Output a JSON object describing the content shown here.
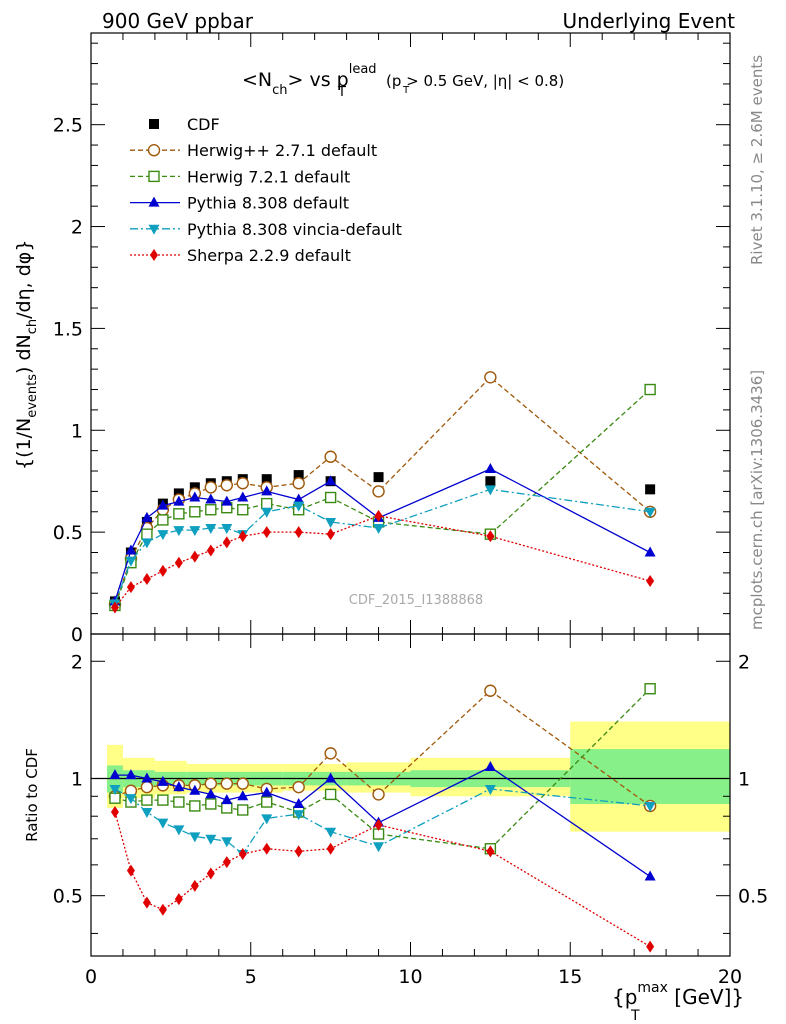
{
  "header": {
    "left": "900 GeV ppbar",
    "right": "Underlying Event",
    "right_side_top": "Rivet 3.1.10, ≥ 2.6M events",
    "right_side_bottom": "mcplots.cern.ch [arXiv:1306.3436]"
  },
  "chart_data": [
    {
      "type": "line",
      "title": "<N_ch> vs p_T^lead (p_T > 0.5 GeV, |η| < 0.8)",
      "title_main": "<N",
      "title_sub_ch": "ch",
      "title_vs": "> vs p",
      "title_sup_lead": "lead",
      "title_sub_T": "T",
      "title_cuts": "(p  > 0.5 GeV, |η| < 0.8)",
      "title_cuts_sub": "T",
      "ylabel": "{(1/N_events) dN_ch/dη, dφ}",
      "ylabel_a": "{(1/N",
      "ylabel_sub_events": "events",
      "ylabel_b": ") dN",
      "ylabel_sub_ch": "ch",
      "ylabel_c": "/dη, dφ}",
      "watermark": "CDF_2015_I1388868",
      "xlim": [
        0,
        20
      ],
      "ylim": [
        0,
        2.95
      ],
      "yticks": [
        "0.5",
        "1",
        "1.5",
        "2",
        "2.5"
      ],
      "legend_position": "top-left",
      "series": [
        {
          "name": "CDF",
          "color": "#000000",
          "x": [
            0.75,
            1.25,
            1.75,
            2.25,
            2.75,
            3.25,
            3.75,
            4.25,
            4.75,
            5.5,
            6.5,
            7.5,
            9.0,
            12.5,
            17.5
          ],
          "y": [
            0.16,
            0.4,
            0.55,
            0.64,
            0.69,
            0.72,
            0.74,
            0.75,
            0.76,
            0.76,
            0.78,
            0.75,
            0.77,
            0.75,
            0.71
          ]
        },
        {
          "name": "Herwig++ 2.7.1 default",
          "color": "#a0580a",
          "x": [
            0.75,
            1.25,
            1.75,
            2.25,
            2.75,
            3.25,
            3.75,
            4.25,
            4.75,
            5.5,
            6.5,
            7.5,
            9.0,
            12.5,
            17.5
          ],
          "y": [
            0.145,
            0.37,
            0.52,
            0.61,
            0.66,
            0.69,
            0.72,
            0.73,
            0.74,
            0.72,
            0.74,
            0.87,
            0.7,
            1.26,
            0.6
          ]
        },
        {
          "name": "Herwig 7.2.1 default",
          "color": "#3a8a12",
          "x": [
            0.75,
            1.25,
            1.75,
            2.25,
            2.75,
            3.25,
            3.75,
            4.25,
            4.75,
            5.5,
            6.5,
            7.5,
            9.0,
            12.5,
            17.5
          ],
          "y": [
            0.14,
            0.35,
            0.49,
            0.56,
            0.59,
            0.6,
            0.61,
            0.62,
            0.61,
            0.64,
            0.61,
            0.67,
            0.55,
            0.49,
            1.2
          ]
        },
        {
          "name": "Pythia 8.308 default",
          "color": "#0000d0",
          "x": [
            0.75,
            1.25,
            1.75,
            2.25,
            2.75,
            3.25,
            3.75,
            4.25,
            4.75,
            5.5,
            6.5,
            7.5,
            9.0,
            12.5,
            17.5
          ],
          "y": [
            0.16,
            0.41,
            0.57,
            0.63,
            0.65,
            0.67,
            0.66,
            0.65,
            0.67,
            0.7,
            0.66,
            0.75,
            0.57,
            0.81,
            0.4
          ]
        },
        {
          "name": "Pythia 8.308 vincia-default",
          "color": "#0f9fbf",
          "x": [
            0.75,
            1.25,
            1.75,
            2.25,
            2.75,
            3.25,
            3.75,
            4.25,
            4.75,
            5.5,
            6.5,
            7.5,
            9.0,
            12.5,
            17.5
          ],
          "y": [
            0.15,
            0.36,
            0.45,
            0.49,
            0.51,
            0.51,
            0.52,
            0.52,
            0.49,
            0.6,
            0.63,
            0.55,
            0.52,
            0.71,
            0.6
          ]
        },
        {
          "name": "Sherpa 2.2.9 default",
          "color": "#e00000",
          "x": [
            0.75,
            1.25,
            1.75,
            2.25,
            2.75,
            3.25,
            3.75,
            4.25,
            4.75,
            5.5,
            6.5,
            7.5,
            9.0,
            12.5,
            17.5
          ],
          "y": [
            0.13,
            0.23,
            0.27,
            0.31,
            0.35,
            0.38,
            0.41,
            0.45,
            0.48,
            0.5,
            0.5,
            0.49,
            0.58,
            0.48,
            0.26
          ]
        }
      ]
    },
    {
      "type": "line",
      "ylabel": "Ratio to CDF",
      "xlabel": "{p_T^max [GeV]}",
      "xlabel_a": "{p",
      "xlabel_sup": "max",
      "xlabel_sub": "T",
      "xlabel_b": " [GeV]}",
      "xlim": [
        0,
        20
      ],
      "ylim": [
        0.35,
        2.35
      ],
      "xticks": [
        "0",
        "5",
        "10",
        "15",
        "20"
      ],
      "yticks": [
        "0.5",
        "1",
        "2"
      ],
      "reference_line": 1,
      "uncertainty_bands": [
        {
          "x0": 0.5,
          "x1": 1.0,
          "outer": [
            0.84,
            1.22
          ],
          "inner": [
            0.92,
            1.08
          ]
        },
        {
          "x0": 1.0,
          "x1": 2.0,
          "outer": [
            0.89,
            1.13
          ],
          "inner": [
            0.95,
            1.05
          ]
        },
        {
          "x0": 2.0,
          "x1": 3.0,
          "outer": [
            0.91,
            1.11
          ],
          "inner": [
            0.96,
            1.04
          ]
        },
        {
          "x0": 3.0,
          "x1": 6.0,
          "outer": [
            0.92,
            1.09
          ],
          "inner": [
            0.96,
            1.04
          ]
        },
        {
          "x0": 6.0,
          "x1": 8.0,
          "outer": [
            0.93,
            1.09
          ],
          "inner": [
            0.96,
            1.04
          ]
        },
        {
          "x0": 8.0,
          "x1": 10.0,
          "outer": [
            0.92,
            1.1
          ],
          "inner": [
            0.96,
            1.04
          ]
        },
        {
          "x0": 10.0,
          "x1": 15.0,
          "outer": [
            0.9,
            1.13
          ],
          "inner": [
            0.95,
            1.05
          ]
        },
        {
          "x0": 15.0,
          "x1": 20.0,
          "outer": [
            0.73,
            1.4
          ],
          "inner": [
            0.86,
            1.19
          ]
        }
      ],
      "series": [
        {
          "name": "Herwig++ 2.7.1 default",
          "x": [
            0.75,
            1.25,
            1.75,
            2.25,
            2.75,
            3.25,
            3.75,
            4.25,
            4.75,
            5.5,
            6.5,
            7.5,
            9.0,
            12.5,
            17.5
          ],
          "y": [
            0.9,
            0.93,
            0.95,
            0.96,
            0.96,
            0.96,
            0.97,
            0.97,
            0.97,
            0.94,
            0.95,
            1.16,
            0.91,
            1.68,
            0.85
          ]
        },
        {
          "name": "Herwig 7.2.1 default",
          "x": [
            0.75,
            1.25,
            1.75,
            2.25,
            2.75,
            3.25,
            3.75,
            4.25,
            4.75,
            5.5,
            6.5,
            7.5,
            9.0,
            12.5,
            17.5
          ],
          "y": [
            0.89,
            0.87,
            0.88,
            0.88,
            0.87,
            0.85,
            0.86,
            0.84,
            0.83,
            0.87,
            0.82,
            0.91,
            0.72,
            0.66,
            1.7
          ]
        },
        {
          "name": "Pythia 8.308 default",
          "x": [
            0.75,
            1.25,
            1.75,
            2.25,
            2.75,
            3.25,
            3.75,
            4.25,
            4.75,
            5.5,
            6.5,
            7.5,
            9.0,
            12.5,
            17.5
          ],
          "y": [
            1.02,
            1.02,
            1.0,
            0.98,
            0.95,
            0.93,
            0.91,
            0.88,
            0.9,
            0.92,
            0.86,
            1.0,
            0.77,
            1.07,
            0.56
          ]
        },
        {
          "name": "Pythia 8.308 vincia-default",
          "x": [
            0.75,
            1.25,
            1.75,
            2.25,
            2.75,
            3.25,
            3.75,
            4.25,
            4.75,
            5.5,
            6.5,
            7.5,
            9.0,
            12.5,
            17.5
          ],
          "y": [
            0.94,
            0.89,
            0.82,
            0.77,
            0.74,
            0.71,
            0.7,
            0.69,
            0.64,
            0.79,
            0.81,
            0.73,
            0.67,
            0.94,
            0.85
          ]
        },
        {
          "name": "Sherpa 2.2.9 default",
          "x": [
            0.75,
            1.25,
            1.75,
            2.25,
            2.75,
            3.25,
            3.75,
            4.25,
            4.75,
            5.5,
            6.5,
            7.5,
            9.0,
            12.5,
            17.5
          ],
          "y": [
            0.82,
            0.58,
            0.48,
            0.46,
            0.49,
            0.53,
            0.57,
            0.61,
            0.64,
            0.66,
            0.65,
            0.66,
            0.76,
            0.65,
            0.37
          ]
        }
      ]
    }
  ]
}
